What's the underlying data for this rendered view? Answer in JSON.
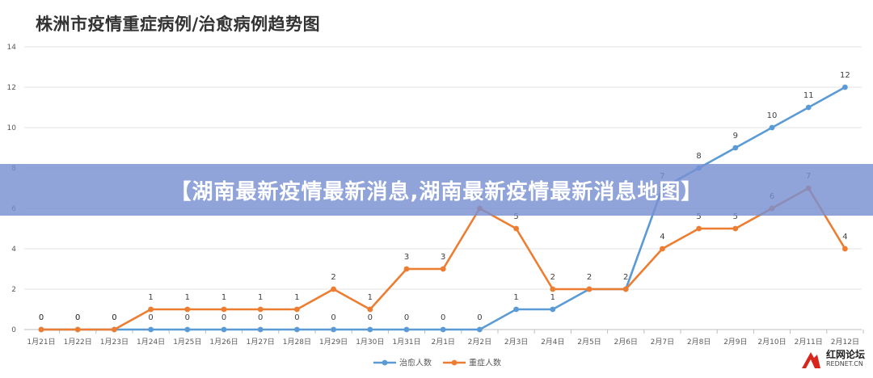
{
  "chart_data": {
    "type": "line",
    "title": "株洲市疫情重症病例/治愈病例趋势图",
    "categories": [
      "1月21日",
      "1月22日",
      "1月23日",
      "1月24日",
      "1月25日",
      "1月26日",
      "1月27日",
      "1月28日",
      "1月29日",
      "1月30日",
      "1月31日",
      "2月1日",
      "2月2日",
      "2月3日",
      "2月4日",
      "2月5日",
      "2月6日",
      "2月7日",
      "2月8日",
      "2月9日",
      "2月10日",
      "2月11日",
      "2月12日"
    ],
    "yticks": [
      "0",
      "2",
      "4",
      "6",
      "8",
      "10",
      "12",
      "14"
    ],
    "ylim": [
      0,
      14
    ],
    "grid": true,
    "legend_position": "bottom",
    "series": [
      {
        "name": "治愈人数",
        "color": "#5b9bd5",
        "values": [
          0,
          0,
          0,
          0,
          0,
          0,
          0,
          0,
          0,
          0,
          0,
          0,
          0,
          1,
          1,
          2,
          2,
          7,
          8,
          9,
          10,
          11,
          12
        ],
        "labels": [
          "0",
          "0",
          "0",
          "0",
          "0",
          "0",
          "0",
          "0",
          "0",
          "0",
          "0",
          "0",
          "0",
          "1",
          "1",
          "",
          "",
          "7",
          "8",
          "9",
          "10",
          "11",
          "12"
        ]
      },
      {
        "name": "重症人数",
        "color": "#ed7d31",
        "values": [
          0,
          0,
          0,
          1,
          1,
          1,
          1,
          1,
          2,
          1,
          3,
          3,
          6,
          5,
          2,
          2,
          2,
          4,
          5,
          5,
          6,
          7,
          4
        ],
        "labels": [
          "0",
          "0",
          "0",
          "1",
          "1",
          "1",
          "1",
          "1",
          "2",
          "1",
          "3",
          "3",
          "6",
          "5",
          "2",
          "2",
          "2",
          "4",
          "5",
          "5",
          "6",
          "7",
          "4"
        ]
      }
    ]
  },
  "banner": {
    "text": "【湖南最新疫情最新消息,湖南最新疫情最新消息地图】"
  },
  "watermark": {
    "name": "红网论坛",
    "url": "REDNET.CN",
    "logo_icon": "rednet-logo-icon"
  }
}
